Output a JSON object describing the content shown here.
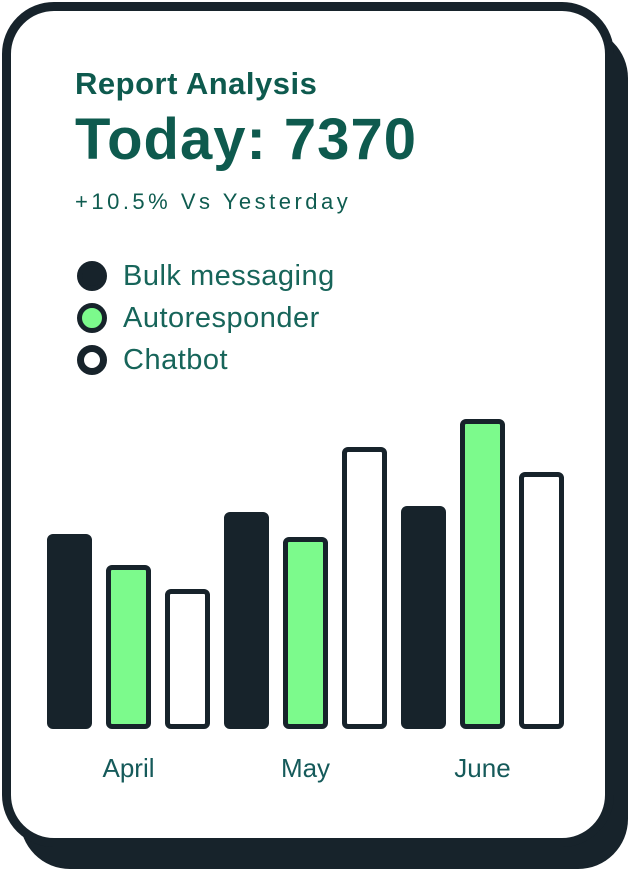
{
  "header": {
    "title": "Report Analysis",
    "today_value": "Today: 7370",
    "delta": "+10.5% Vs Yesterday"
  },
  "legend": {
    "items": [
      {
        "label": "Bulk messaging",
        "swatch_icon": "filled-dark-circle-icon",
        "color": "#17232b"
      },
      {
        "label": "Autoresponder",
        "swatch_icon": "green-circle-icon",
        "color": "#7cfa8c"
      },
      {
        "label": "Chatbot",
        "swatch_icon": "outlined-white-circle-icon",
        "color": "#ffffff"
      }
    ]
  },
  "chart_data": {
    "type": "bar",
    "title": "Report Analysis",
    "categories": [
      "April",
      "May",
      "June"
    ],
    "series": [
      {
        "name": "Bulk messaging",
        "fill": "dark",
        "values": [
          63,
          70,
          72
        ]
      },
      {
        "name": "Autoresponder",
        "fill": "green",
        "values": [
          53,
          62,
          100
        ]
      },
      {
        "name": "Chatbot",
        "fill": "white",
        "values": [
          45,
          91,
          83
        ]
      }
    ],
    "max_value": 100,
    "value_units": "relative bar height, % of tallest bar (no numeric axis shown)",
    "xlabel": "",
    "ylabel": "",
    "axes_visible": false,
    "gridlines": false,
    "legend_position": "above-chart-left"
  },
  "palette": {
    "dark": "#17232b",
    "green": "#7cfa8c",
    "white": "#ffffff",
    "teal_headline": "#0e5a4e",
    "teal_text": "#17655a",
    "card_background": "#ffffff"
  }
}
